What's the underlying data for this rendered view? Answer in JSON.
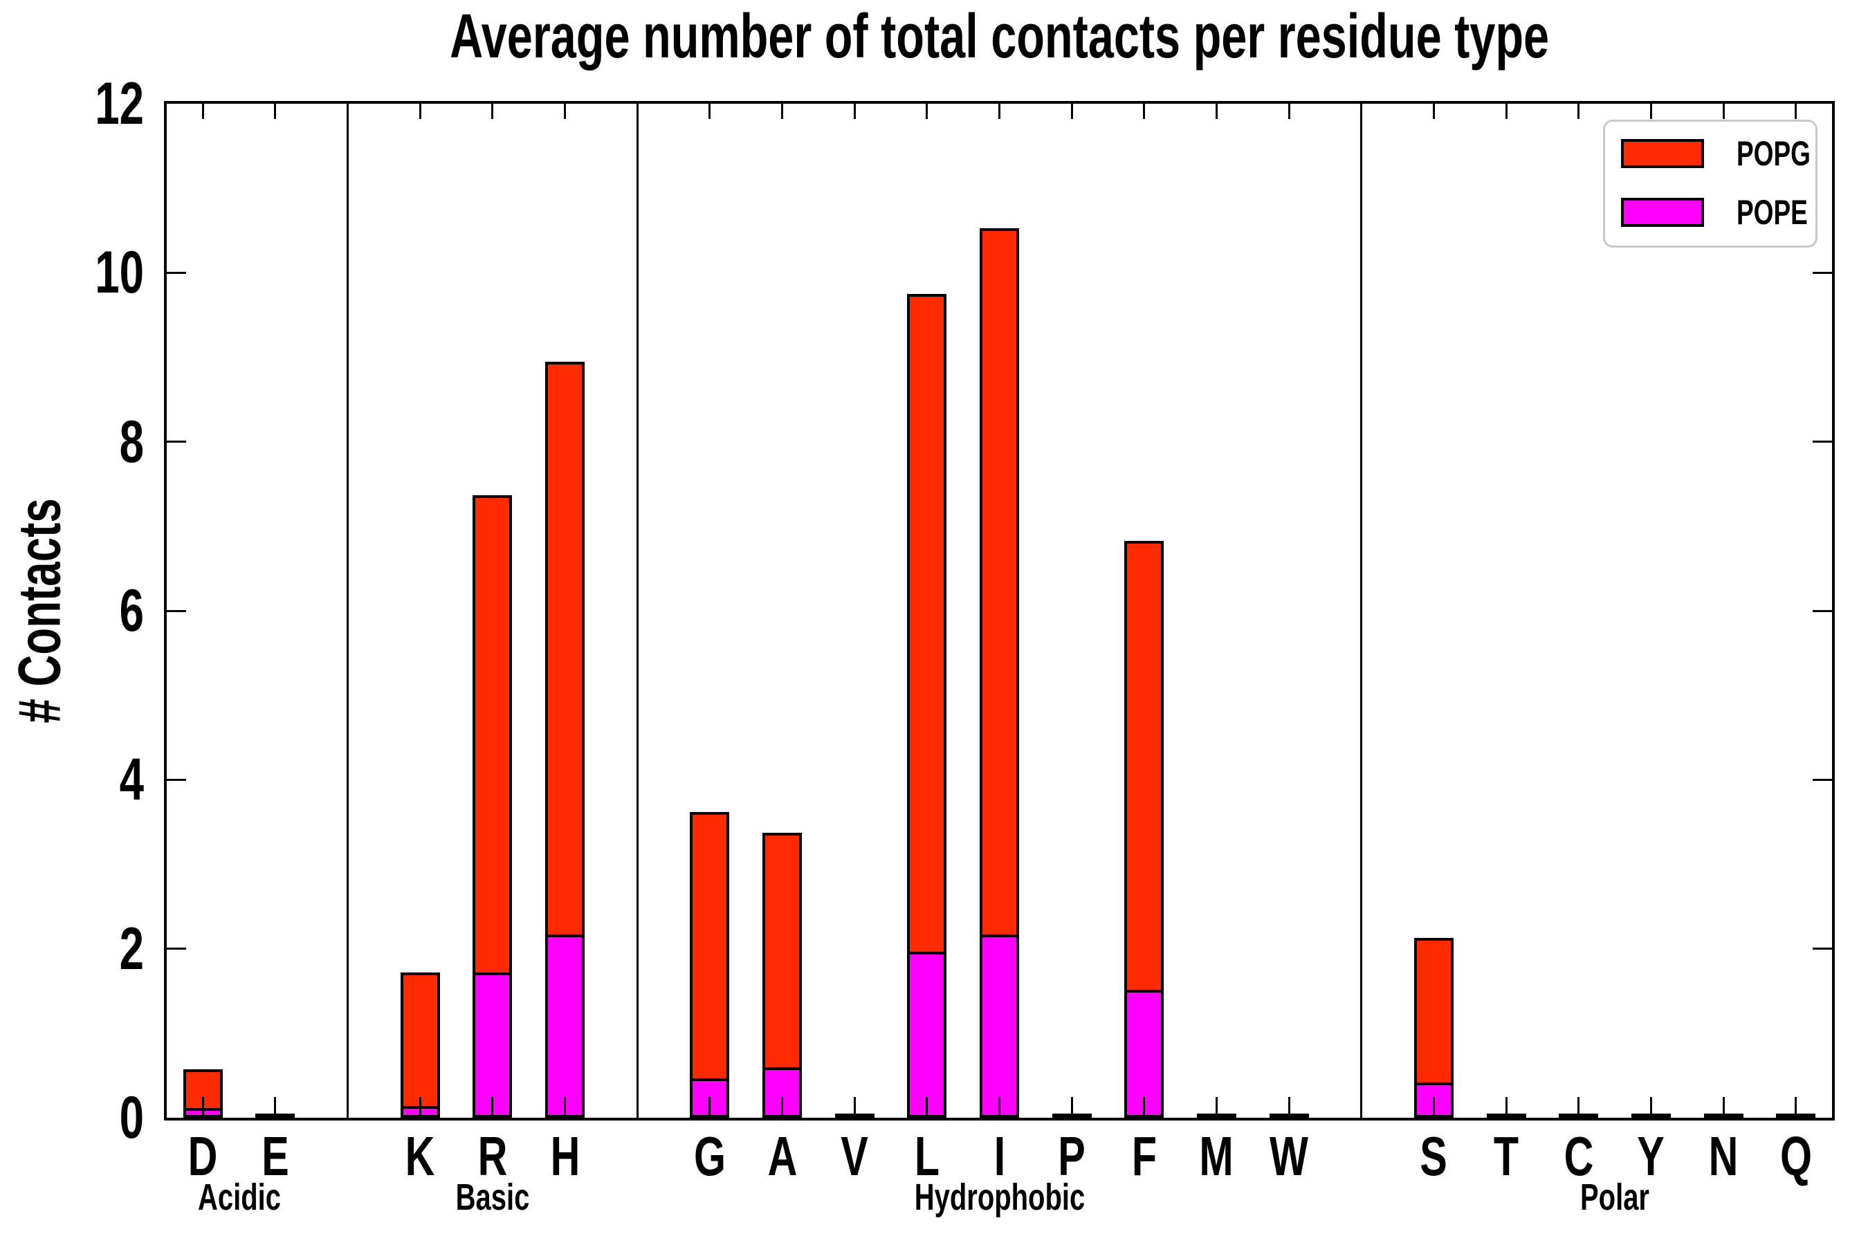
{
  "title": "Average number of total contacts per residue type",
  "ylabel": "# Contacts",
  "legend": {
    "items": [
      {
        "label": "POPG",
        "color": "#ff2b00"
      },
      {
        "label": "POPE",
        "color": "#ff00ff"
      }
    ]
  },
  "colors": {
    "popg": "#ff2b00",
    "pope": "#ff00ff",
    "axis": "#000000",
    "legend_border": "#c8c8c8"
  },
  "chart_data": {
    "type": "bar",
    "stacked": true,
    "title": "Average number of total contacts per residue type",
    "xlabel": "",
    "ylabel": "# Contacts",
    "ylim": [
      0,
      12
    ],
    "yticks": [
      0,
      2,
      4,
      6,
      8,
      10,
      12
    ],
    "grid": false,
    "legend_position": "upper right",
    "tick_direction": "in",
    "categories": [
      "D",
      "E",
      "K",
      "R",
      "H",
      "G",
      "A",
      "V",
      "L",
      "I",
      "P",
      "F",
      "M",
      "W",
      "S",
      "T",
      "C",
      "Y",
      "N",
      "Q"
    ],
    "groups": [
      {
        "label": "Acidic",
        "residues": [
          "D",
          "E"
        ]
      },
      {
        "label": "Basic",
        "residues": [
          "K",
          "R",
          "H"
        ]
      },
      {
        "label": "Hydrophobic",
        "residues": [
          "G",
          "A",
          "V",
          "L",
          "I",
          "P",
          "F",
          "M",
          "W"
        ]
      },
      {
        "label": "Polar",
        "residues": [
          "S",
          "T",
          "C",
          "Y",
          "N",
          "Q"
        ]
      }
    ],
    "series": [
      {
        "name": "POPE",
        "color": "#ff00ff",
        "values": [
          0.1,
          0.01,
          0.12,
          1.7,
          2.15,
          0.45,
          0.58,
          0.01,
          1.95,
          2.15,
          0.01,
          1.5,
          0.01,
          0.01,
          0.4,
          0.01,
          0.01,
          0.01,
          0.01,
          0.01
        ]
      },
      {
        "name": "POPG",
        "color": "#ff2b00",
        "values": [
          0.47,
          0.01,
          1.6,
          5.67,
          6.8,
          3.17,
          2.79,
          0.01,
          7.8,
          8.38,
          0.01,
          5.33,
          0.01,
          0.01,
          1.73,
          0.01,
          0.01,
          0.01,
          0.01,
          0.01
        ]
      }
    ],
    "totals": [
      0.57,
      0.02,
      1.72,
      7.37,
      8.95,
      3.62,
      3.37,
      0.02,
      9.75,
      10.53,
      0.02,
      6.83,
      0.02,
      0.02,
      2.13,
      0.02,
      0.02,
      0.02,
      0.02,
      0.02
    ]
  }
}
